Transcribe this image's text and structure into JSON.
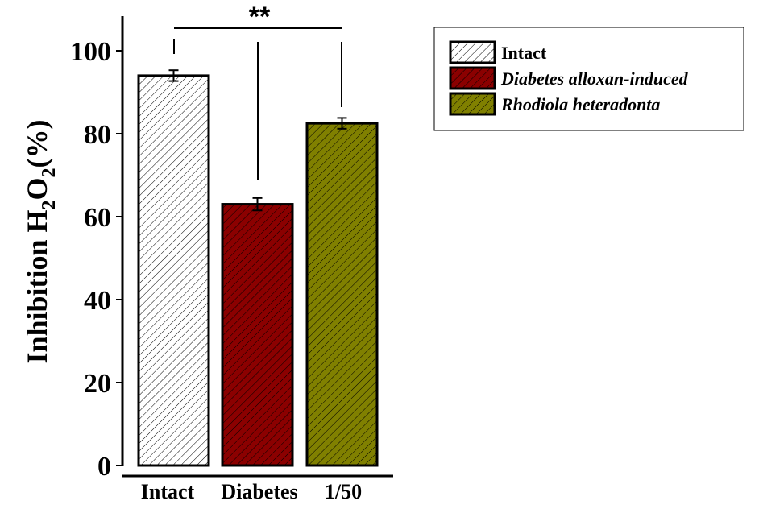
{
  "chart_data": {
    "type": "bar",
    "categories": [
      "Intact",
      "Diabetes",
      "1/50"
    ],
    "values": [
      94,
      63,
      82.5
    ],
    "errors": [
      1.3,
      1.5,
      1.3
    ],
    "colors": [
      "#ffffff",
      "#8b0000",
      "#808000"
    ],
    "ylabel": "Inhibition H",
    "ylabel_parts": {
      "main": "Inhibition H",
      "sub1": "2",
      "mid": "O",
      "sub2": "2",
      "tail": "(%)"
    },
    "ylim": [
      0,
      100
    ],
    "yticks": [
      "0",
      "20",
      "40",
      "60",
      "80",
      "100"
    ],
    "grid": false,
    "legend_position": "top-right",
    "legend": [
      {
        "label": "Intact",
        "color": "#ffffff",
        "italic": false
      },
      {
        "label": "Diabetes alloxan-induced",
        "color": "#8b0000",
        "italic": true
      },
      {
        "label": "Rhodiola heteradonta",
        "color": "#808000",
        "italic": true
      }
    ],
    "significance": {
      "label": "**"
    }
  }
}
